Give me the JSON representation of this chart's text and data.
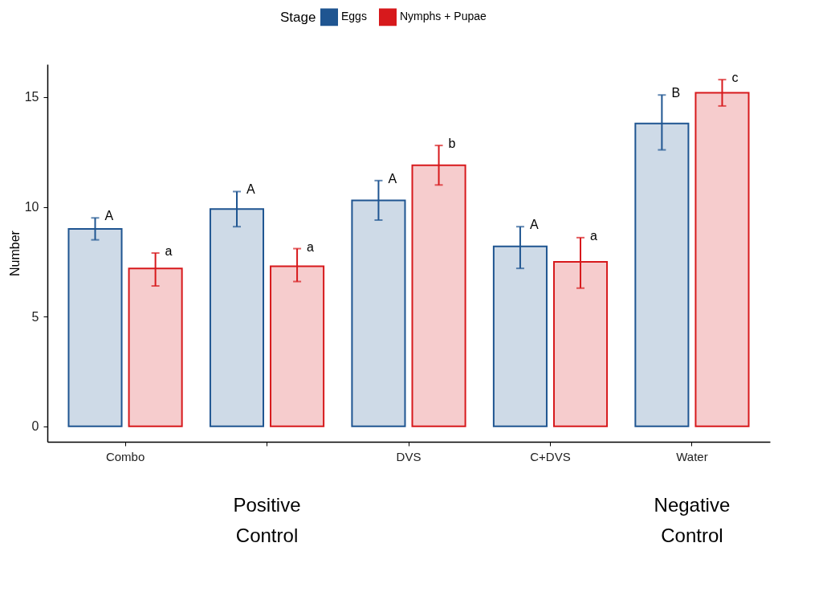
{
  "chart_data": {
    "type": "bar",
    "ylabel": "Number",
    "legend_title": "Stage",
    "legend": "top",
    "categories": [
      "Combo",
      null,
      "DVS",
      "C+DVS",
      "Water"
    ],
    "series": [
      {
        "name": "Eggs",
        "color": "#1f5591",
        "values": [
          9.0,
          9.9,
          10.3,
          8.2,
          13.8
        ],
        "errors": [
          [
            8.5,
            9.5
          ],
          [
            9.1,
            10.7
          ],
          [
            9.4,
            11.2
          ],
          [
            7.2,
            9.1
          ],
          [
            12.6,
            15.1
          ]
        ],
        "value_labels": [
          "A",
          "A",
          "A",
          "A",
          "B"
        ]
      },
      {
        "name": "Nymphs + Pupae",
        "color": "#d7191c",
        "values": [
          7.2,
          7.3,
          11.9,
          7.5,
          15.2
        ],
        "errors": [
          [
            6.4,
            7.9
          ],
          [
            6.6,
            8.1
          ],
          [
            11.0,
            12.8
          ],
          [
            6.3,
            8.6
          ],
          [
            14.6,
            15.8
          ]
        ],
        "value_labels": [
          "a",
          "a",
          "b",
          "a",
          "c"
        ]
      }
    ],
    "ylim": [
      -0.7,
      16.5
    ],
    "yticks": [
      0,
      5,
      10,
      15
    ],
    "grid": false,
    "annotations": [
      "Positive Control",
      "Negative Control"
    ]
  }
}
